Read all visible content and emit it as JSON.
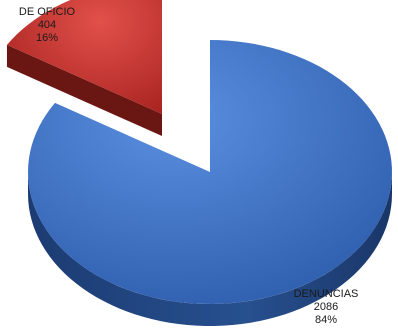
{
  "chart_data": {
    "type": "pie",
    "style": "3d-exploded",
    "slices": [
      {
        "label": "DENUNCIAS",
        "value": 2086,
        "percent": "84%",
        "color": "#3a6fc4"
      },
      {
        "label": "DE OFICIO",
        "value": 404,
        "percent": "16%",
        "color": "#c8312c"
      }
    ]
  }
}
